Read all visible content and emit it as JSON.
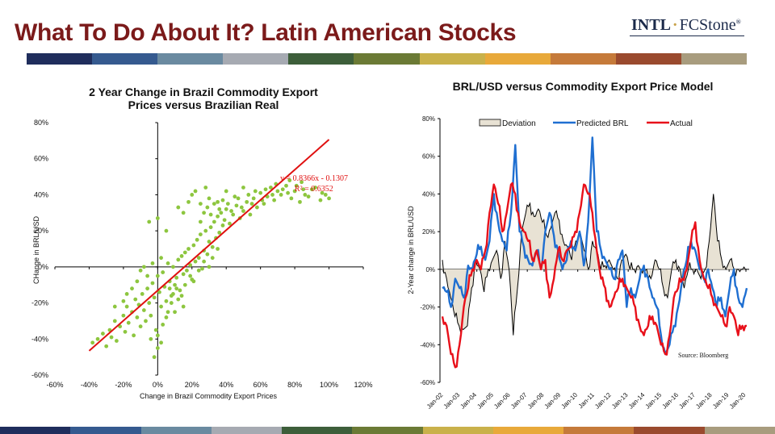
{
  "slide": {
    "title": "What To Do About It? Latin American Stocks",
    "logo_left": "INTL",
    "logo_sep": "·",
    "logo_right": "FCStone",
    "logo_mark": "®",
    "band_colors": [
      "#1f2d5c",
      "#355a8f",
      "#6a8aa0",
      "#a6aab2",
      "#3d5e3a",
      "#6b7a35",
      "#c9b14a",
      "#e8a93a",
      "#c57a3a",
      "#9a4a2e",
      "#a89c7e"
    ]
  },
  "chart_data": [
    {
      "type": "scatter",
      "title": "2 Year Change in Brazil Commodity Export Prices versus Brazilian Real",
      "title_lines": [
        "2 Year Change in Brazil Commodity Export",
        "Prices versus Brazilian Real"
      ],
      "xlabel": "Change in Brazil Commodity Export Prices",
      "ylabel": "CHange in BRL/USD",
      "xlim": [
        -0.6,
        1.2
      ],
      "ylim": [
        -0.6,
        0.8
      ],
      "xticks": [
        "-60%",
        "-40%",
        "-20%",
        "0%",
        "20%",
        "40%",
        "60%",
        "80%",
        "100%",
        "120%"
      ],
      "yticks": [
        "-60%",
        "-40%",
        "-20%",
        "0%",
        "20%",
        "40%",
        "60%",
        "80%"
      ],
      "point_color": "#8dc63f",
      "trendline": {
        "slope": 0.8366,
        "intercept": -0.1307,
        "x_range": [
          -0.4,
          1.0
        ],
        "color": "#e01010"
      },
      "annotations": [
        "y = 0.8366x - 0.1307",
        "R² = 0.6352"
      ],
      "points": [
        [
          -0.38,
          -0.42
        ],
        [
          -0.35,
          -0.4
        ],
        [
          -0.32,
          -0.37
        ],
        [
          -0.3,
          -0.44
        ],
        [
          -0.28,
          -0.35
        ],
        [
          -0.27,
          -0.39
        ],
        [
          -0.25,
          -0.3
        ],
        [
          -0.24,
          -0.41
        ],
        [
          -0.22,
          -0.33
        ],
        [
          -0.2,
          -0.27
        ],
        [
          -0.19,
          -0.36
        ],
        [
          -0.18,
          -0.22
        ],
        [
          -0.17,
          -0.31
        ],
        [
          -0.15,
          -0.25
        ],
        [
          -0.14,
          -0.38
        ],
        [
          -0.13,
          -0.18
        ],
        [
          -0.12,
          -0.28
        ],
        [
          -0.11,
          -0.21
        ],
        [
          -0.1,
          -0.33
        ],
        [
          -0.09,
          -0.15
        ],
        [
          -0.08,
          -0.24
        ],
        [
          -0.07,
          -0.3
        ],
        [
          -0.06,
          -0.12
        ],
        [
          -0.05,
          -0.2
        ],
        [
          -0.04,
          -0.27
        ],
        [
          -0.03,
          -0.09
        ],
        [
          -0.02,
          -0.17
        ],
        [
          -0.01,
          -0.35
        ],
        [
          0.0,
          -0.05
        ],
        [
          0.0,
          -0.45
        ],
        [
          -0.02,
          -0.5
        ],
        [
          0.01,
          -0.14
        ],
        [
          0.02,
          -0.22
        ],
        [
          0.03,
          -0.03
        ],
        [
          0.04,
          -0.11
        ],
        [
          0.05,
          -0.19
        ],
        [
          0.06,
          0.02
        ],
        [
          0.07,
          -0.08
        ],
        [
          0.08,
          -0.16
        ],
        [
          0.09,
          0.0
        ],
        [
          0.1,
          -0.1
        ],
        [
          0.11,
          -0.06
        ],
        [
          0.12,
          0.04
        ],
        [
          0.13,
          -0.13
        ],
        [
          0.14,
          0.06
        ],
        [
          0.15,
          -0.04
        ],
        [
          0.16,
          0.08
        ],
        [
          0.17,
          -0.02
        ],
        [
          0.18,
          0.1
        ],
        [
          0.19,
          0.01
        ],
        [
          0.2,
          -0.07
        ],
        [
          0.21,
          0.12
        ],
        [
          0.22,
          0.03
        ],
        [
          0.23,
          0.15
        ],
        [
          0.24,
          0.05
        ],
        [
          0.25,
          0.18
        ],
        [
          0.26,
          -0.01
        ],
        [
          0.27,
          0.09
        ],
        [
          0.28,
          0.2
        ],
        [
          0.29,
          0.07
        ],
        [
          0.3,
          0.14
        ],
        [
          0.31,
          0.22
        ],
        [
          0.32,
          0.11
        ],
        [
          0.33,
          0.25
        ],
        [
          0.34,
          0.16
        ],
        [
          0.35,
          0.28
        ],
        [
          0.36,
          0.19
        ],
        [
          0.37,
          0.3
        ],
        [
          0.38,
          0.23
        ],
        [
          0.39,
          0.26
        ],
        [
          0.4,
          0.32
        ],
        [
          0.42,
          0.24
        ],
        [
          0.44,
          0.29
        ],
        [
          0.46,
          0.34
        ],
        [
          0.48,
          0.27
        ],
        [
          0.5,
          0.31
        ],
        [
          0.52,
          0.36
        ],
        [
          0.54,
          0.29
        ],
        [
          0.56,
          0.38
        ],
        [
          0.58,
          0.33
        ],
        [
          0.6,
          0.41
        ],
        [
          0.62,
          0.35
        ],
        [
          0.64,
          0.39
        ],
        [
          0.66,
          0.44
        ],
        [
          0.68,
          0.37
        ],
        [
          0.7,
          0.42
        ],
        [
          0.72,
          0.4
        ],
        [
          0.75,
          0.45
        ],
        [
          0.78,
          0.38
        ],
        [
          0.8,
          0.42
        ],
        [
          0.83,
          0.36
        ],
        [
          0.86,
          0.4
        ],
        [
          0.9,
          0.43
        ],
        [
          0.95,
          0.37
        ],
        [
          0.98,
          0.4
        ],
        [
          0.2,
          0.4
        ],
        [
          0.25,
          0.35
        ],
        [
          0.3,
          0.38
        ],
        [
          0.15,
          0.3
        ],
        [
          0.22,
          0.42
        ],
        [
          0.18,
          0.36
        ],
        [
          0.28,
          0.44
        ],
        [
          0.12,
          0.33
        ],
        [
          -0.05,
          0.25
        ],
        [
          0.0,
          0.27
        ],
        [
          0.05,
          0.2
        ],
        [
          0.35,
          0.36
        ],
        [
          0.4,
          0.42
        ],
        [
          0.45,
          0.39
        ],
        [
          0.5,
          0.44
        ],
        [
          -0.1,
          -0.02
        ],
        [
          -0.08,
          0.0
        ],
        [
          -0.12,
          -0.08
        ],
        [
          -0.15,
          -0.12
        ],
        [
          -0.03,
          0.02
        ],
        [
          0.02,
          0.05
        ],
        [
          -0.06,
          -0.05
        ],
        [
          -0.18,
          -0.15
        ],
        [
          -0.2,
          -0.19
        ],
        [
          -0.25,
          -0.22
        ],
        [
          0.08,
          -0.2
        ],
        [
          0.1,
          -0.25
        ],
        [
          0.12,
          -0.18
        ],
        [
          0.15,
          -0.22
        ],
        [
          0.05,
          -0.28
        ],
        [
          0.03,
          -0.32
        ],
        [
          0.07,
          -0.12
        ],
        [
          -0.04,
          -0.4
        ],
        [
          0.0,
          -0.38
        ],
        [
          0.02,
          -0.42
        ],
        [
          0.06,
          -0.25
        ],
        [
          0.09,
          -0.15
        ],
        [
          0.11,
          -0.12
        ],
        [
          0.14,
          -0.16
        ],
        [
          0.16,
          -0.1
        ],
        [
          0.19,
          -0.05
        ],
        [
          0.21,
          -0.08
        ],
        [
          0.24,
          -0.02
        ],
        [
          0.27,
          0.03
        ],
        [
          0.3,
          0.0
        ],
        [
          0.32,
          0.05
        ],
        [
          0.35,
          0.1
        ],
        [
          0.25,
          0.25
        ],
        [
          0.27,
          0.3
        ],
        [
          0.29,
          0.33
        ],
        [
          0.31,
          0.29
        ],
        [
          0.33,
          0.35
        ],
        [
          0.36,
          0.32
        ],
        [
          0.38,
          0.37
        ],
        [
          0.41,
          0.35
        ],
        [
          0.43,
          0.31
        ],
        [
          0.47,
          0.38
        ],
        [
          0.49,
          0.33
        ],
        [
          0.53,
          0.4
        ],
        [
          0.55,
          0.35
        ],
        [
          0.57,
          0.42
        ],
        [
          0.61,
          0.37
        ],
        [
          0.63,
          0.43
        ],
        [
          0.67,
          0.4
        ],
        [
          0.69,
          0.46
        ],
        [
          0.73,
          0.43
        ],
        [
          0.76,
          0.41
        ],
        [
          0.81,
          0.45
        ],
        [
          0.85,
          0.43
        ],
        [
          0.88,
          0.39
        ],
        [
          0.92,
          0.44
        ],
        [
          0.96,
          0.41
        ],
        [
          1.0,
          0.38
        ],
        [
          0.84,
          0.47
        ],
        [
          0.77,
          0.48
        ]
      ]
    },
    {
      "type": "line",
      "title": "BRL/USD versus Commodity Export Price Model",
      "ylabel": "2-Year change in BRL/USD",
      "ylim": [
        -0.6,
        0.8
      ],
      "yticks": [
        "-60%",
        "-40%",
        "-20%",
        "0%",
        "20%",
        "40%",
        "60%",
        "80%"
      ],
      "x_start": "Jan-02",
      "x_months": 228,
      "xticks": [
        "Jan-02",
        "Jan-03",
        "Jan-04",
        "Jan-05",
        "Jan-06",
        "Jan-07",
        "Jan-08",
        "Jan-09",
        "Jan-10",
        "Jan-11",
        "Jan-12",
        "Jan-13",
        "Jan-14",
        "Jan-15",
        "Jan-16",
        "Jan-17",
        "Jan-18",
        "Jan-19",
        "Jan-20"
      ],
      "source": "Source: Bloomberg",
      "series": [
        {
          "name": "Deviation",
          "color": "#000000",
          "fill": "#e8e2d4",
          "type": "area",
          "values": [
            0.05,
            -0.05,
            -0.15,
            -0.25,
            -0.3,
            -0.32,
            -0.3,
            -0.1,
            0.05,
            0.0,
            -0.12,
            0.0,
            0.05,
            0.1,
            -0.05,
            0.15,
            0.0,
            -0.35,
            -0.1,
            0.2,
            0.3,
            0.35,
            0.28,
            0.32,
            0.25,
            0.18,
            0.22,
            0.3,
            0.26,
            0.15,
            0.12,
            0.05,
            0.15,
            0.2,
            0.1,
            0.0,
            0.15,
            0.1,
            0.0,
            0.02,
            0.05,
            0.0,
            -0.05,
            0.05,
            0.08,
            0.0,
            0.0,
            0.02,
            -0.02,
            0.0,
            -0.05,
            0.05,
            0.0,
            -0.1,
            -0.15,
            0.0,
            0.05,
            0.0,
            -0.1,
            0.0,
            0.0,
            0.0,
            -0.05,
            0.0,
            0.15,
            0.4,
            0.15,
            0.05,
            0.0,
            0.05,
            0.0,
            0.0,
            0.0,
            0.0
          ]
        },
        {
          "name": "Predicted BRL",
          "color": "#1f6fd1",
          "type": "line",
          "values": [
            -0.1,
            -0.12,
            -0.2,
            -0.05,
            -0.1,
            -0.15,
            0.02,
            0.0,
            0.08,
            0.12,
            0.05,
            0.15,
            0.4,
            0.25,
            0.15,
            0.1,
            0.3,
            0.66,
            0.2,
            0.12,
            0.05,
            0.02,
            0.1,
            0.0,
            0.2,
            0.3,
            0.18,
            0.1,
            0.0,
            0.05,
            0.15,
            0.1,
            0.2,
            0.02,
            0.25,
            0.7,
            0.2,
            0.1,
            0.05,
            0.0,
            -0.05,
            0.05,
            0.1,
            -0.2,
            -0.1,
            -0.15,
            -0.05,
            0.02,
            -0.05,
            -0.15,
            -0.2,
            -0.35,
            -0.45,
            -0.4,
            -0.3,
            -0.2,
            -0.05,
            0.05,
            0.15,
            0.1,
            0.0,
            -0.05,
            0.0,
            -0.1,
            -0.2,
            -0.15,
            -0.25,
            -0.1,
            0.0,
            -0.15,
            -0.2,
            -0.1
          ]
        },
        {
          "name": "Actual",
          "color": "#e8101a",
          "type": "line",
          "values": [
            -0.25,
            -0.3,
            -0.45,
            -0.52,
            -0.4,
            -0.2,
            -0.1,
            0.0,
            0.05,
            0.0,
            0.1,
            0.3,
            0.45,
            0.35,
            0.2,
            0.3,
            0.45,
            0.4,
            0.25,
            0.2,
            0.15,
            0.05,
            0.1,
            0.0,
            0.05,
            -0.15,
            -0.05,
            0.1,
            0.05,
            0.1,
            0.12,
            0.2,
            0.3,
            0.45,
            0.4,
            0.3,
            0.1,
            -0.05,
            -0.1,
            -0.2,
            -0.15,
            -0.1,
            -0.05,
            -0.1,
            -0.15,
            -0.2,
            -0.3,
            -0.35,
            -0.3,
            -0.25,
            -0.3,
            -0.4,
            -0.45,
            -0.35,
            -0.15,
            -0.1,
            -0.05,
            0.0,
            0.15,
            0.25,
            0.05,
            -0.05,
            -0.1,
            -0.15,
            -0.2,
            -0.25,
            -0.3,
            -0.2,
            -0.25,
            -0.35,
            -0.3,
            -0.3
          ]
        }
      ]
    }
  ]
}
